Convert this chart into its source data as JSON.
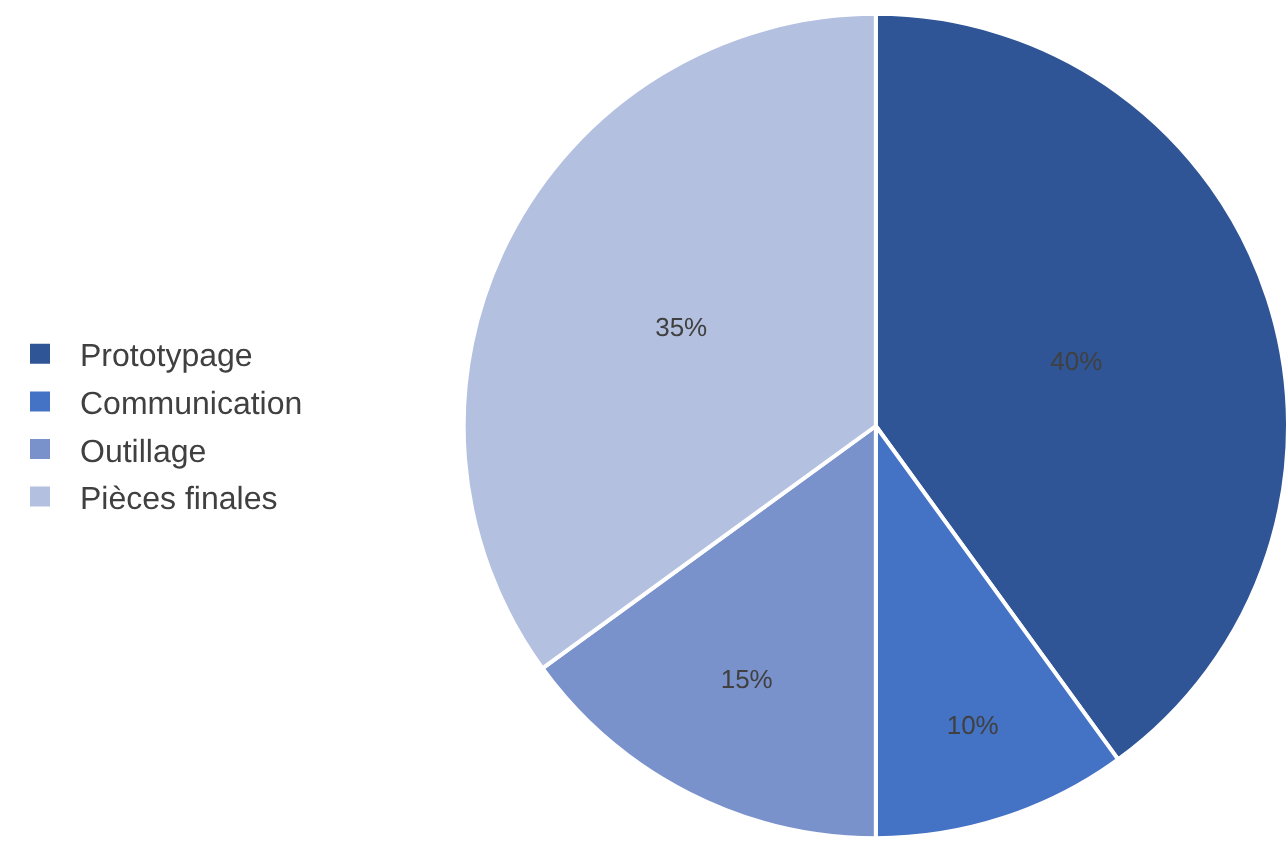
{
  "chart_data": {
    "type": "pie",
    "categories": [
      "Prototypage",
      "Communication",
      "Outillage",
      "Pièces finales"
    ],
    "values": [
      40,
      10,
      15,
      35
    ],
    "colors": [
      "#2f5597",
      "#4472c4",
      "#7a92cc",
      "#b4c0e0"
    ],
    "value_labels": [
      "40%",
      "10%",
      "15%",
      "35%"
    ],
    "legend": "left"
  }
}
